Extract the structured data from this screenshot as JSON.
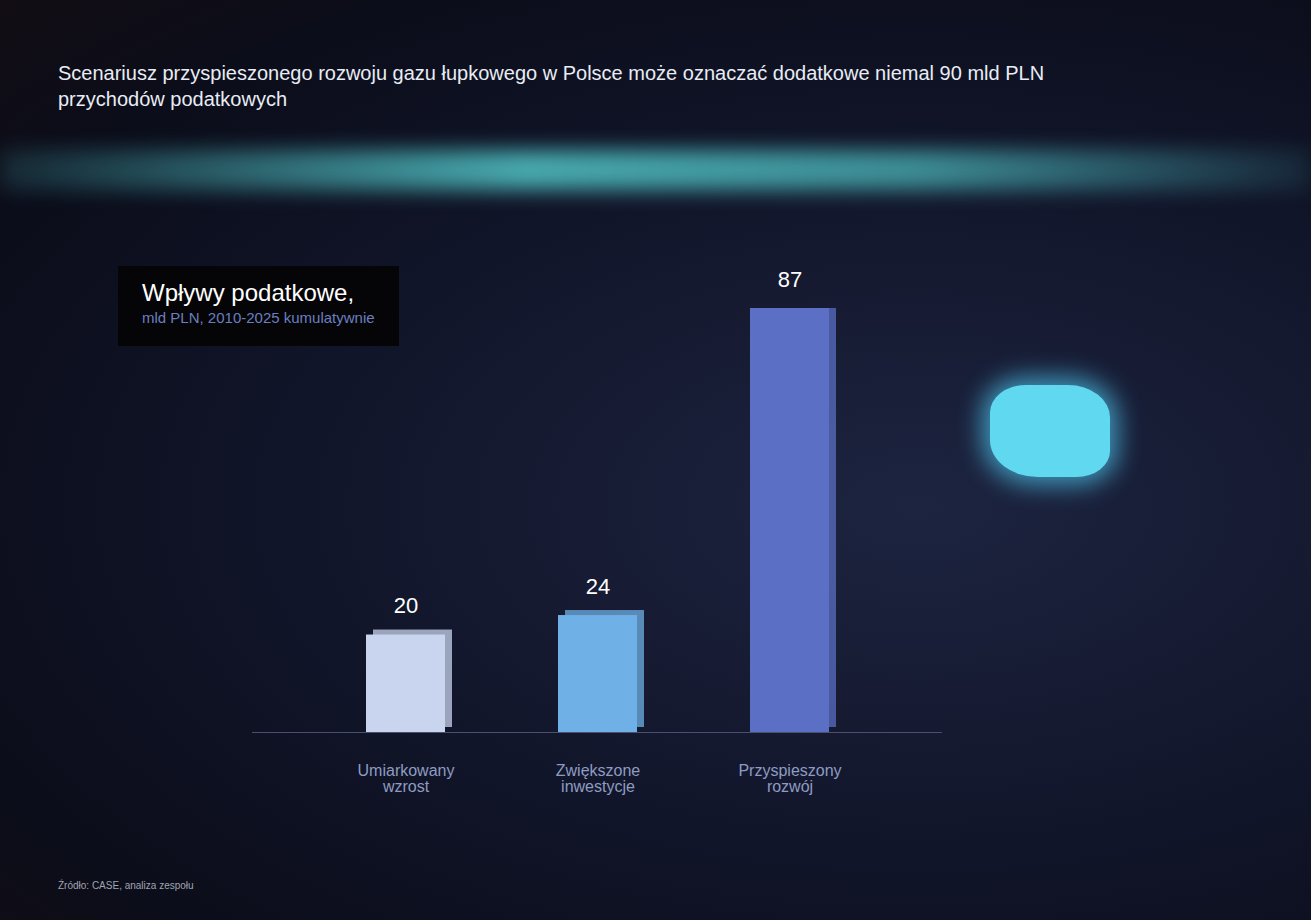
{
  "chart_data": {
    "type": "bar",
    "title": "Scenariusz przyspieszonego rozwoju gazu łupkowego w Polsce może oznaczać dodatkowe niemal 90 mld PLN przychodów podatkowych",
    "subtitle": "Wpływy podatkowe,",
    "unit_label": "mld PLN, 2010-2025 kumulatywnie",
    "source": "Źródło: CASE, analiza zespołu",
    "categories": [
      "Umiarkowany wzrost",
      "Zwiększone inwestycje",
      "Przyspieszony rozwój"
    ],
    "values": [
      20,
      24,
      87
    ],
    "colors": [
      "#c9d4ee",
      "#6fb0e6",
      "#5b6fc4"
    ],
    "data_labels": true,
    "tick_labels": "x"
  }
}
